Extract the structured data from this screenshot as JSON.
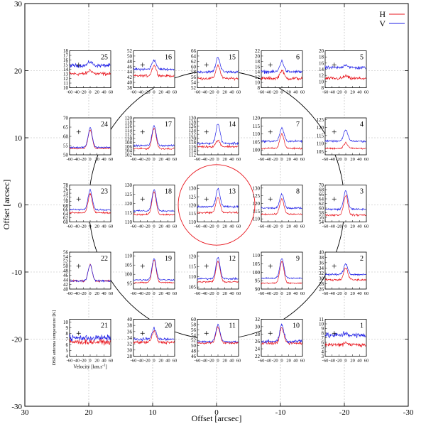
{
  "chart_data": {
    "type": "line",
    "title": "",
    "xlabel": "Offset [arcsec]",
    "ylabel": "Offset [arcsec]",
    "xlim": [
      30,
      -30
    ],
    "ylim": [
      -30,
      30
    ],
    "x_ticks": [
      "30",
      "20",
      "10",
      "0",
      "-10",
      "-20",
      "-30"
    ],
    "y_ticks": [
      "30",
      "20",
      "10",
      "0",
      "-10",
      "-20",
      "-30"
    ],
    "grid": true,
    "legend": {
      "position": "top-right",
      "entries": [
        {
          "name": "H",
          "color": "#e8141c"
        },
        {
          "name": "V",
          "color": "#1e1ee6"
        }
      ]
    },
    "large_circle": {
      "center": [
        0,
        0
      ],
      "radius": 20.0
    },
    "small_circle": {
      "center": [
        0,
        0
      ],
      "radius": 6.0
    },
    "inset_xlabel": "Velocity [km.s",
    "inset_xlabel_sup": "-1",
    "inset_xlabel_end": "]",
    "inset_ylabel": "DSB antenna temperature [K]",
    "inset_xticks": [
      "-60",
      "-40",
      "-20",
      "0",
      "20",
      "40",
      "60"
    ],
    "insets": [
      {
        "id": "25",
        "x": 20,
        "y": 20,
        "yticks": [
          "18",
          "17",
          "16",
          "15",
          "14",
          "13",
          "12",
          "11",
          "10"
        ],
        "ylim": [
          10,
          18
        ],
        "base_h": 13.0,
        "base_v": 14.8,
        "peak_h": 0.8,
        "peak_v": 0.8,
        "noise_h": 0.6,
        "noise_v": 0.6
      },
      {
        "id": "16",
        "x": 10,
        "y": 20,
        "yticks": [
          "52",
          "50",
          "48",
          "46",
          "44",
          "42",
          "40",
          "38"
        ],
        "ylim": [
          38,
          52
        ],
        "base_h": 42.5,
        "base_v": 45.0,
        "peak_h": 4.0,
        "peak_v": 3.5,
        "noise_h": 0.7,
        "noise_v": 0.7
      },
      {
        "id": "15",
        "x": 0,
        "y": 20,
        "yticks": [
          "66",
          "64",
          "62",
          "60",
          "58",
          "56",
          "54",
          "52"
        ],
        "ylim": [
          52,
          66
        ],
        "base_h": 55.5,
        "base_v": 58.0,
        "peak_h": 5.0,
        "peak_v": 5.5,
        "noise_h": 0.7,
        "noise_v": 0.7
      },
      {
        "id": "6",
        "x": -10,
        "y": 20,
        "yticks": [
          "22",
          "20",
          "18",
          "16",
          "14",
          "12",
          "10",
          "8"
        ],
        "ylim": [
          8,
          22
        ],
        "base_h": 11.5,
        "base_v": 14.0,
        "peak_h": 3.0,
        "peak_v": 4.0,
        "noise_h": 0.9,
        "noise_v": 0.9
      },
      {
        "id": "5",
        "x": -20,
        "y": 20,
        "yticks": [
          "20",
          "18",
          "16",
          "14",
          "12",
          "10",
          "8"
        ],
        "ylim": [
          8,
          20
        ],
        "base_h": 11.0,
        "base_v": 14.5,
        "peak_h": 0.8,
        "peak_v": 1.0,
        "noise_h": 0.8,
        "noise_v": 0.8
      },
      {
        "id": "24",
        "x": 20,
        "y": 10,
        "yticks": [
          "70",
          "65",
          "60",
          "55",
          "50"
        ],
        "ylim": [
          50,
          70
        ],
        "base_h": 53.5,
        "base_v": 54.0,
        "peak_h": 10.0,
        "peak_v": 10.5,
        "noise_h": 0.6,
        "noise_v": 0.6
      },
      {
        "id": "17",
        "x": 10,
        "y": 10,
        "yticks": [
          "120",
          "118",
          "116",
          "114",
          "112",
          "110",
          "108",
          "106",
          "104",
          "102"
        ],
        "ylim": [
          102,
          120
        ],
        "base_h": 105.0,
        "base_v": 106.5,
        "peak_h": 10.0,
        "peak_v": 9.5,
        "noise_h": 0.6,
        "noise_v": 0.6
      },
      {
        "id": "14",
        "x": 0,
        "y": 10,
        "yticks": [
          "130",
          "128",
          "126",
          "124",
          "122",
          "120",
          "118",
          "116",
          "114",
          "112"
        ],
        "ylim": [
          112,
          130
        ],
        "base_h": 116.0,
        "base_v": 117.5,
        "peak_h": 3.0,
        "peak_v": 9.5,
        "noise_h": 0.8,
        "noise_v": 0.8
      },
      {
        "id": "7",
        "x": -10,
        "y": 10,
        "yticks": [
          "120",
          "115",
          "110",
          "105",
          "100"
        ],
        "ylim": [
          97,
          120
        ],
        "base_h": 101.0,
        "base_v": 105.5,
        "peak_h": 9.0,
        "peak_v": 8.0,
        "noise_h": 0.9,
        "noise_v": 0.9
      },
      {
        "id": "4",
        "x": -20,
        "y": 10,
        "yticks": [
          "125",
          "120",
          "115",
          "110",
          "105"
        ],
        "ylim": [
          103,
          126
        ],
        "base_h": 107.0,
        "base_v": 111.5,
        "peak_h": 3.5,
        "peak_v": 7.0,
        "noise_h": 0.8,
        "noise_v": 0.8
      },
      {
        "id": "23",
        "x": 20,
        "y": 0,
        "yticks": [
          "78",
          "76",
          "74",
          "72",
          "70",
          "68",
          "66",
          "64",
          "62",
          "60"
        ],
        "ylim": [
          60,
          78
        ],
        "base_h": 64.5,
        "base_v": 66.0,
        "peak_h": 9.0,
        "peak_v": 9.5,
        "noise_h": 0.6,
        "noise_v": 0.6
      },
      {
        "id": "18",
        "x": 10,
        "y": 0,
        "yticks": [
          "130",
          "125",
          "120",
          "115",
          "110"
        ],
        "ylim": [
          110,
          130
        ],
        "base_h": 114.0,
        "base_v": 116.0,
        "peak_h": 12.5,
        "peak_v": 11.5,
        "noise_h": 0.6,
        "noise_v": 0.6
      },
      {
        "id": "13",
        "x": 0,
        "y": 0,
        "yticks": [
          "130",
          "125",
          "120",
          "115",
          "110"
        ],
        "ylim": [
          110,
          132
        ],
        "base_h": 115.5,
        "base_v": 119.0,
        "peak_h": 9.0,
        "peak_v": 10.5,
        "noise_h": 0.9,
        "noise_v": 0.9
      },
      {
        "id": "8",
        "x": -10,
        "y": 0,
        "yticks": [
          "130",
          "125",
          "120",
          "115",
          "110"
        ],
        "ylim": [
          108,
          132
        ],
        "base_h": 113.0,
        "base_v": 117.0,
        "peak_h": 10.0,
        "peak_v": 9.0,
        "noise_h": 0.8,
        "noise_v": 0.8
      },
      {
        "id": "3",
        "x": -20,
        "y": 0,
        "yticks": [
          "70",
          "68",
          "66",
          "64",
          "62",
          "60",
          "58",
          "56",
          "54"
        ],
        "ylim": [
          54,
          70
        ],
        "base_h": 57.0,
        "base_v": 59.5,
        "peak_h": 8.5,
        "peak_v": 8.0,
        "noise_h": 0.6,
        "noise_v": 0.6
      },
      {
        "id": "22",
        "x": 20,
        "y": -10,
        "yticks": [
          "56",
          "54",
          "52",
          "50",
          "48",
          "46",
          "44",
          "42",
          "40"
        ],
        "ylim": [
          40,
          56
        ],
        "base_h": 43.5,
        "base_v": 43.5,
        "peak_h": 7.0,
        "peak_v": 7.0,
        "noise_h": 0.6,
        "noise_v": 0.6
      },
      {
        "id": "19",
        "x": 10,
        "y": -10,
        "yticks": [
          "110",
          "105",
          "100",
          "95"
        ],
        "ylim": [
          92,
          112
        ],
        "base_h": 95.5,
        "base_v": 97.0,
        "peak_h": 12.0,
        "peak_v": 11.5,
        "noise_h": 0.6,
        "noise_v": 0.6
      },
      {
        "id": "12",
        "x": 0,
        "y": -10,
        "yticks": [
          "120",
          "115",
          "110",
          "105"
        ],
        "ylim": [
          104,
          122
        ],
        "base_h": 107.5,
        "base_v": 109.0,
        "peak_h": 10.0,
        "peak_v": 10.5,
        "noise_h": 0.6,
        "noise_v": 0.6
      },
      {
        "id": "9",
        "x": -10,
        "y": -10,
        "yticks": [
          "110",
          "105",
          "100",
          "95",
          "90"
        ],
        "ylim": [
          90,
          112
        ],
        "base_h": 93.5,
        "base_v": 96.5,
        "peak_h": 13.0,
        "peak_v": 11.5,
        "noise_h": 0.6,
        "noise_v": 0.6
      },
      {
        "id": "2",
        "x": -20,
        "y": -10,
        "yticks": [
          "40",
          "38",
          "36",
          "34",
          "32",
          "30",
          "28",
          "26"
        ],
        "ylim": [
          26,
          40
        ],
        "base_h": 29.5,
        "base_v": 31.5,
        "peak_h": 4.5,
        "peak_v": 4.0,
        "noise_h": 0.6,
        "noise_v": 0.6
      },
      {
        "id": "21",
        "x": 20,
        "y": -20,
        "yticks": [
          "10",
          "9",
          "8",
          "7",
          "6",
          "5",
          "4"
        ],
        "ylim": [
          4,
          10.5
        ],
        "base_h": 6.5,
        "base_v": 7.2,
        "peak_h": 0.0,
        "peak_v": 0.0,
        "noise_h": 0.7,
        "noise_v": 0.8
      },
      {
        "id": "20",
        "x": 10,
        "y": -20,
        "yticks": [
          "40",
          "38",
          "36",
          "34",
          "32",
          "30",
          "28"
        ],
        "ylim": [
          28,
          40
        ],
        "base_h": 32.5,
        "base_v": 33.5,
        "peak_h": 3.5,
        "peak_v": 3.5,
        "noise_h": 0.7,
        "noise_v": 0.7
      },
      {
        "id": "11",
        "x": 0,
        "y": -20,
        "yticks": [
          "60",
          "58",
          "56",
          "54",
          "52",
          "50",
          "48",
          "46"
        ],
        "ylim": [
          46,
          60
        ],
        "base_h": 51.0,
        "base_v": 51.5,
        "peak_h": 6.0,
        "peak_v": 6.5,
        "noise_h": 0.5,
        "noise_v": 0.5
      },
      {
        "id": "10",
        "x": -10,
        "y": -20,
        "yticks": [
          "32",
          "30",
          "28",
          "26",
          "24",
          "22"
        ],
        "ylim": [
          22,
          32
        ],
        "base_h": 25.5,
        "base_v": 26.0,
        "peak_h": 4.0,
        "peak_v": 4.5,
        "noise_h": 0.6,
        "noise_v": 0.6
      },
      {
        "id": "1",
        "x": -20,
        "y": -20,
        "yticks": [
          "11",
          "10",
          "9",
          "8",
          "7",
          "6",
          "5",
          "4",
          "3"
        ],
        "ylim": [
          3,
          11
        ],
        "base_h": 5.5,
        "base_v": 7.5,
        "peak_h": 0.5,
        "peak_v": 0.5,
        "noise_h": 0.7,
        "noise_v": 0.9
      }
    ]
  }
}
